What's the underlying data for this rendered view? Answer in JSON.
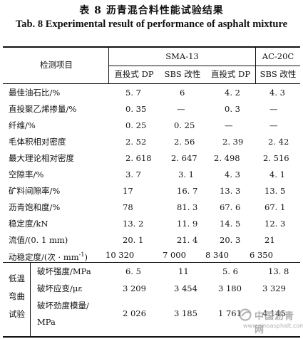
{
  "caption": {
    "title_cn": "表 8    沥青混合料性能试验结果",
    "title_en": "Tab. 8    Experimental result of performance of asphalt mixture"
  },
  "header": {
    "item": "检测项目",
    "group1": "SMA-13",
    "group2": "AC-20C",
    "sub": [
      "直投式 DP",
      "SBS 改性",
      "直投式 DP",
      "SBS 改性"
    ]
  },
  "rows": [
    {
      "label": "最佳油石比/%",
      "values": [
        "5. 7",
        "6",
        "4. 2",
        "4. 3"
      ]
    },
    {
      "label": "直投聚乙烯掺量/%",
      "values": [
        "0. 35",
        "—",
        "0. 3",
        "—"
      ]
    },
    {
      "label": "纤维/%",
      "values": [
        "0. 25",
        "0. 25",
        "—",
        "—"
      ]
    },
    {
      "label": "毛体积相对密度",
      "values": [
        "2. 52",
        "2. 56",
        "2. 39",
        "2. 42"
      ]
    },
    {
      "label": "最大理论相对密度",
      "values": [
        "2. 618",
        "2. 647",
        "2. 498",
        "2. 516"
      ]
    },
    {
      "label": "空隙率/%",
      "values": [
        "3. 7",
        "3. 1",
        "4. 3",
        "4. 1"
      ]
    },
    {
      "label": "矿料间隙率/%",
      "values": [
        "17",
        "16. 7",
        "13. 3",
        "13. 5"
      ]
    },
    {
      "label": "沥青饱和度/%",
      "values": [
        "78",
        "81. 3",
        "67. 6",
        "67. 1"
      ]
    },
    {
      "label": "稳定度/kN",
      "values": [
        "13. 2",
        "11. 9",
        "14. 5",
        "12. 3"
      ]
    },
    {
      "label": "流值/(0. 1 mm)",
      "values": [
        "20. 1",
        "21. 4",
        "20. 3",
        "21"
      ]
    },
    {
      "label": "动稳定度/(次 · mm",
      "label_sup": "-1",
      "label_end": ")",
      "values": [
        "10 320",
        "7 000",
        "8 340",
        "6 350"
      ]
    }
  ],
  "low_temp": {
    "group_label": [
      "低温",
      "弯曲",
      "试验"
    ],
    "rows": [
      {
        "label": "破坏强度/MPa",
        "values": [
          "6. 5",
          "11",
          "5. 6",
          "13. 8"
        ]
      },
      {
        "label": "破坏应变/με",
        "values": [
          "3 209",
          "3 454",
          "3 180",
          "3 329"
        ]
      },
      {
        "label": "破坏劲度模量/",
        "label2": "MPa",
        "values": [
          "2 026",
          "3 185",
          "1 761",
          "4 145"
        ]
      }
    ]
  },
  "watermark": {
    "cn": "中国沥青网",
    "url": "www.sinoasphalt.com",
    "color": "#969696"
  }
}
